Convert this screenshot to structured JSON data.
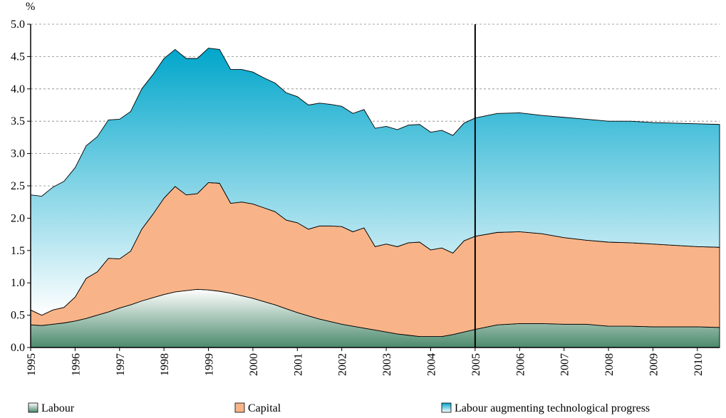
{
  "chart_data": {
    "type": "stacked_area",
    "y_label": "%",
    "x": [
      1995,
      1995.25,
      1995.5,
      1995.75,
      1996,
      1996.25,
      1996.5,
      1996.75,
      1997,
      1997.25,
      1997.5,
      1997.75,
      1998,
      1998.25,
      1998.5,
      1998.75,
      1999,
      1999.25,
      1999.5,
      1999.75,
      2000,
      2000.25,
      2000.5,
      2000.75,
      2001,
      2001.25,
      2001.5,
      2001.75,
      2002,
      2002.25,
      2002.5,
      2002.75,
      2003,
      2003.25,
      2003.5,
      2003.75,
      2004,
      2004.25,
      2004.5,
      2004.75,
      2005,
      2005.5,
      2006,
      2006.5,
      2007,
      2007.5,
      2008,
      2008.5,
      2009,
      2009.5,
      2010,
      2010.5
    ],
    "series": [
      {
        "name": "Labour",
        "color": "#4b8a6c",
        "values": [
          0.35,
          0.34,
          0.36,
          0.38,
          0.41,
          0.45,
          0.5,
          0.55,
          0.61,
          0.66,
          0.72,
          0.77,
          0.82,
          0.86,
          0.88,
          0.9,
          0.89,
          0.87,
          0.84,
          0.8,
          0.76,
          0.71,
          0.66,
          0.6,
          0.54,
          0.49,
          0.44,
          0.4,
          0.36,
          0.33,
          0.3,
          0.27,
          0.24,
          0.21,
          0.19,
          0.17,
          0.17,
          0.17,
          0.2,
          0.24,
          0.28,
          0.35,
          0.37,
          0.37,
          0.36,
          0.36,
          0.33,
          0.33,
          0.32,
          0.32,
          0.32,
          0.31
        ]
      },
      {
        "name": "Capital",
        "color": "#f8b488",
        "values": [
          0.23,
          0.16,
          0.22,
          0.24,
          0.37,
          0.62,
          0.67,
          0.83,
          0.76,
          0.83,
          1.11,
          1.29,
          1.49,
          1.63,
          1.48,
          1.48,
          1.66,
          1.67,
          1.39,
          1.45,
          1.46,
          1.45,
          1.44,
          1.37,
          1.39,
          1.34,
          1.44,
          1.48,
          1.51,
          1.46,
          1.55,
          1.29,
          1.36,
          1.35,
          1.43,
          1.46,
          1.34,
          1.37,
          1.26,
          1.41,
          1.44,
          1.43,
          1.42,
          1.39,
          1.34,
          1.3,
          1.3,
          1.29,
          1.28,
          1.26,
          1.24,
          1.24
        ]
      },
      {
        "name": "Labour augmenting technological progress",
        "color": "#00a6cb",
        "values": [
          1.78,
          1.84,
          1.9,
          1.95,
          2.0,
          2.05,
          2.09,
          2.14,
          2.16,
          2.16,
          2.17,
          2.16,
          2.16,
          2.12,
          2.11,
          2.09,
          2.08,
          2.07,
          2.07,
          2.05,
          2.04,
          2.01,
          1.99,
          1.97,
          1.95,
          1.92,
          1.9,
          1.88,
          1.86,
          1.83,
          1.83,
          1.83,
          1.82,
          1.81,
          1.82,
          1.82,
          1.82,
          1.82,
          1.82,
          1.82,
          1.83,
          1.84,
          1.84,
          1.83,
          1.86,
          1.87,
          1.87,
          1.88,
          1.88,
          1.89,
          1.9,
          1.9
        ]
      }
    ],
    "xlim": [
      1995,
      2010.5
    ],
    "xticks": [
      1995,
      1996,
      1997,
      1998,
      1999,
      2000,
      2001,
      2002,
      2003,
      2004,
      2005,
      2006,
      2007,
      2008,
      2009,
      2010
    ],
    "ylim": [
      0,
      5
    ],
    "yticks": [
      {
        "value": 0,
        "label": "0.0"
      },
      0.5,
      {
        "value": 1,
        "label": "1.0"
      },
      1.5,
      {
        "value": 2,
        "label": "2.0"
      },
      2.5,
      {
        "value": 3,
        "label": "3.0"
      },
      3.5,
      {
        "value": 4,
        "label": "4.0"
      },
      4.5,
      {
        "value": 5,
        "label": "5.0"
      }
    ],
    "vline": 2005,
    "grid": true,
    "legend": "bottom"
  }
}
